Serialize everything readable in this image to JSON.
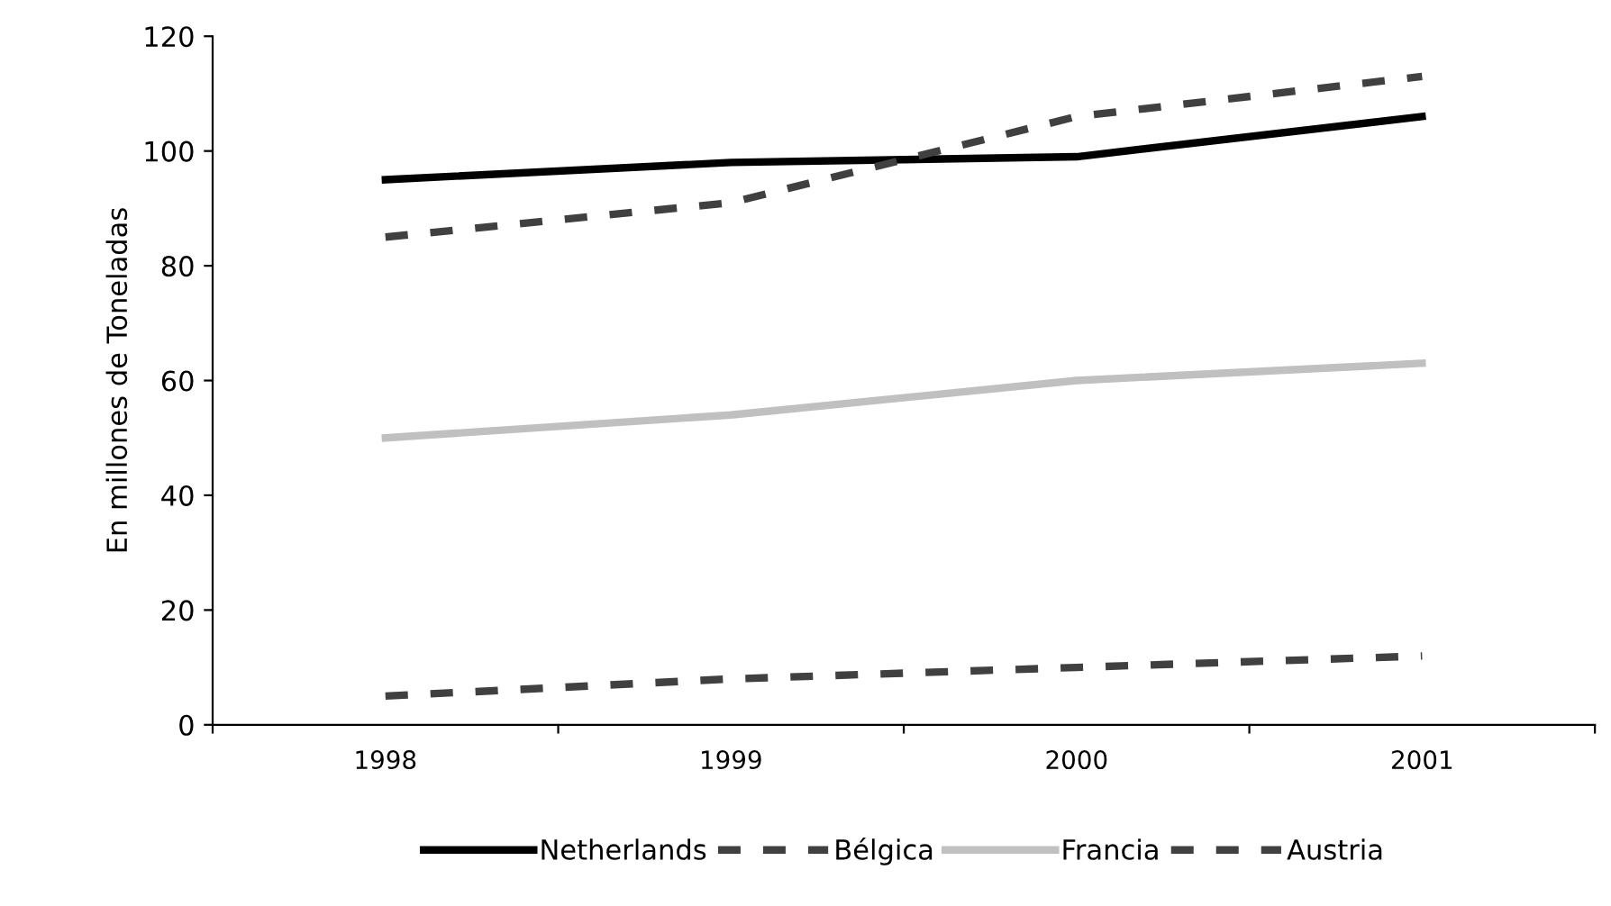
{
  "chart_data": {
    "type": "line",
    "ylabel": "En millones de Toneladas",
    "categories": [
      "1998",
      "1999",
      "2000",
      "2001"
    ],
    "series": [
      {
        "name": "Netherlands",
        "color": "#000000",
        "line_style": "solid",
        "values": [
          95,
          98,
          99,
          106
        ]
      },
      {
        "name": "Bélgica",
        "color": "#404040",
        "line_style": "dashed",
        "values": [
          85,
          91,
          106,
          113
        ]
      },
      {
        "name": "Francia",
        "color": "#c0c0c0",
        "line_style": "solid",
        "values": [
          50,
          54,
          60,
          63
        ]
      },
      {
        "name": "Austria",
        "color": "#404040",
        "line_style": "dashed",
        "values": [
          5,
          8,
          10,
          12
        ]
      }
    ],
    "ylim": [
      0,
      120
    ],
    "yticks": [
      0,
      20,
      40,
      60,
      80,
      100,
      120
    ],
    "grid": false,
    "legend": "bottom",
    "marker": "none"
  }
}
